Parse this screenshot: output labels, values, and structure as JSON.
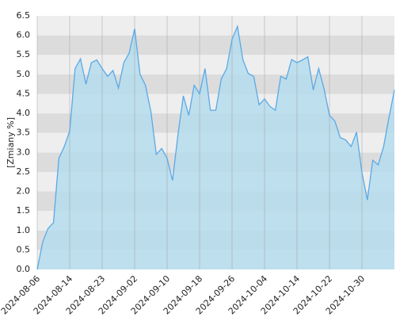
{
  "chart_data": {
    "type": "area",
    "y_label": "[Zmiany %]",
    "categories": [
      "2024-08-06",
      null,
      null,
      null,
      null,
      null,
      "2024-08-14",
      null,
      null,
      null,
      null,
      null,
      "2024-08-23",
      null,
      null,
      null,
      null,
      null,
      "2024-09-02",
      null,
      null,
      null,
      null,
      null,
      "2024-09-10",
      null,
      null,
      null,
      null,
      null,
      "2024-09-18",
      null,
      null,
      null,
      null,
      null,
      "2024-09-26",
      null,
      null,
      null,
      null,
      null,
      "2024-10-04",
      null,
      null,
      null,
      null,
      null,
      "2024-10-14",
      null,
      null,
      null,
      null,
      null,
      "2024-10-22",
      null,
      null,
      null,
      null,
      null,
      "2024-10-30",
      null,
      null,
      null,
      null,
      null,
      null
    ],
    "values": [
      0,
      0.7,
      1.05,
      1.2,
      2.85,
      3.15,
      3.55,
      5.15,
      5.4,
      4.75,
      5.3,
      5.37,
      5.15,
      4.95,
      5.1,
      4.65,
      5.3,
      5.55,
      6.17,
      5.0,
      4.72,
      4.05,
      2.95,
      3.1,
      2.85,
      2.28,
      3.45,
      4.45,
      3.95,
      4.72,
      4.5,
      5.15,
      4.08,
      4.08,
      4.88,
      5.15,
      5.9,
      6.23,
      5.38,
      5.02,
      4.95,
      4.22,
      4.37,
      4.18,
      4.08,
      4.95,
      4.88,
      5.38,
      5.3,
      5.37,
      5.45,
      4.6,
      5.15,
      4.63,
      3.95,
      3.8,
      3.38,
      3.32,
      3.15,
      3.52,
      2.48,
      1.78,
      2.8,
      2.68,
      3.15,
      3.9,
      4.6
    ],
    "color": "#5aa9e6",
    "fill_color": "#b5dcec",
    "ylim": [
      0,
      6.5
    ],
    "yticks": [
      {
        "value": 0,
        "label": "0.0"
      },
      {
        "value": 0.5,
        "label": "0.5"
      },
      {
        "value": 1,
        "label": "1.0"
      },
      {
        "value": 1.5,
        "label": "1.5"
      },
      {
        "value": 2,
        "label": "2.0"
      },
      {
        "value": 2.5,
        "label": "2.5"
      },
      {
        "value": 3,
        "label": "3.0"
      },
      {
        "value": 3.5,
        "label": "3.5"
      },
      {
        "value": 4,
        "label": "4.0"
      },
      {
        "value": 4.5,
        "label": "4.5"
      },
      {
        "value": 5,
        "label": "5.0"
      },
      {
        "value": 5.5,
        "label": "5.5"
      },
      {
        "value": 6,
        "label": "6.0"
      },
      {
        "value": 6.5,
        "label": "6.5"
      }
    ],
    "grid": true
  }
}
